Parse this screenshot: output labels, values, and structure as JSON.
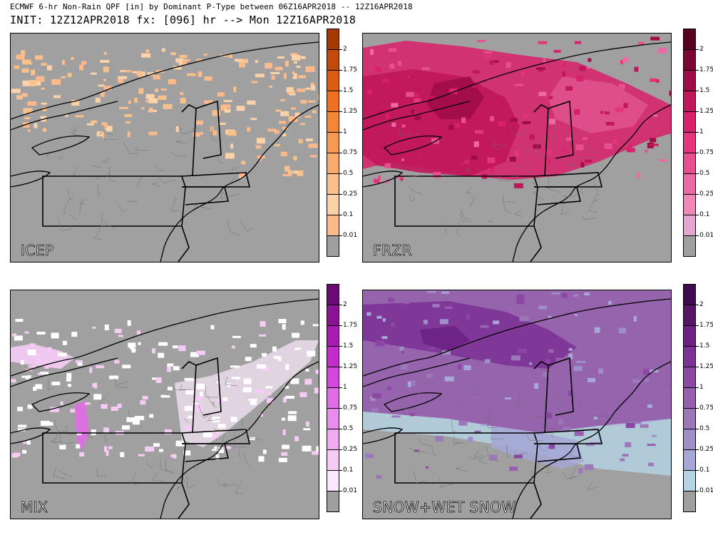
{
  "header": {
    "title_line1": "ECMWF 6-hr Non-Rain QPF [in] by Dominant P-Type between 06Z16APR2018 -- 12Z16APR2018",
    "title_line2": "INIT: 12Z12APR2018 fx: [096] hr --> Mon 12Z16APR2018"
  },
  "levels": [
    "2",
    "1.75",
    "1.5",
    "1.25",
    "1",
    "0.75",
    "0.5",
    "0.25",
    "0.1",
    "0.01"
  ],
  "panels": [
    {
      "key": "icep",
      "label": "ICEP",
      "colors": [
        "#a33800",
        "#c24a0b",
        "#db5d14",
        "#ee7021",
        "#f48637",
        "#f69a52",
        "#f8ad6e",
        "#fac08b",
        "#fcd2a8",
        "#fdb98a",
        "#9f9f9f"
      ],
      "accent": "#f39a52"
    },
    {
      "key": "frzr",
      "label": "FRZR",
      "colors": [
        "#5a0020",
        "#7d0634",
        "#a00c47",
        "#c0165a",
        "#d9206a",
        "#e5357c",
        "#e84f90",
        "#ec6aa3",
        "#f087b7",
        "#e4a6d1",
        "#9f9f9f"
      ],
      "accent": "#d81b60"
    },
    {
      "key": "mix",
      "label": "MIX",
      "colors": [
        "#6b0a73",
        "#8a1394",
        "#a81cb3",
        "#c12ccb",
        "#d447dc",
        "#e06ce6",
        "#e88ded",
        "#efacf2",
        "#f6ccf7",
        "#fbe9fb",
        "#9f9f9f"
      ],
      "accent": "#f0b4f2"
    },
    {
      "key": "snow",
      "label": "SNOW+WET SNOW",
      "colors": [
        "#3f0a4f",
        "#571566",
        "#6c2283",
        "#7d3396",
        "#8b47a3",
        "#9660ae",
        "#9c78b9",
        "#9f8fc7",
        "#a6a7d6",
        "#b4d4e6",
        "#9f9f9f"
      ],
      "accent": "#8c60b8"
    }
  ]
}
